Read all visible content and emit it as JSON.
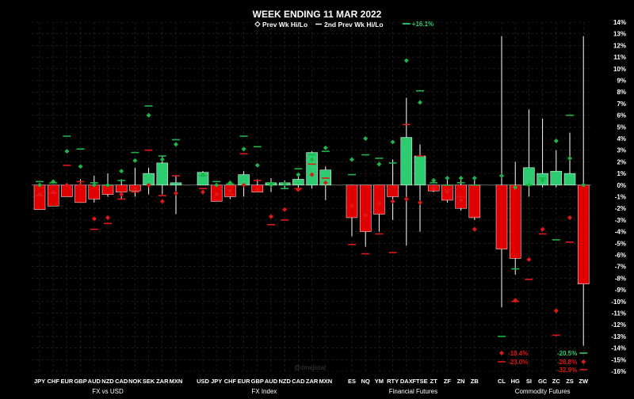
{
  "chart_data": {
    "type": "candlestick",
    "title": "WEEK ENDING 11 MAR 2022",
    "legend": {
      "placement": "top-center",
      "entries": [
        {
          "symbol": "diamond",
          "label": "Prev Wk Hi/Lo"
        },
        {
          "symbol": "dash",
          "label": "2nd Prev Wk Hi/Lo"
        }
      ]
    },
    "watermark": "@dmejistar",
    "y_axis": {
      "position": "right",
      "min": -16,
      "max": 14,
      "step": 1,
      "unit": "%"
    },
    "grid": true,
    "colors": {
      "up": "#2ecc71",
      "down": "#e00000",
      "prev": "#1fb34a",
      "prev_down": "#e01818",
      "wick": "#ffffff",
      "text": "#ffffff"
    },
    "groups": [
      {
        "label": "FX vs USD",
        "items": [
          {
            "name": "JPY",
            "open": 0.0,
            "close": -2.1,
            "high": 0.0,
            "low": -2.1,
            "prev_hi": 0.0,
            "prev_lo": -0.8,
            "prev2_hi": 0.3,
            "prev2_lo": -0.9
          },
          {
            "name": "CHF",
            "open": 0.0,
            "close": -1.8,
            "high": 0.0,
            "low": -1.8,
            "prev_hi": 0.3,
            "prev_lo": -0.6,
            "prev2_hi": 0.2,
            "prev2_lo": -0.7
          },
          {
            "name": "EUR",
            "open": 0.0,
            "close": -1.0,
            "high": 0.0,
            "low": -1.0,
            "prev_hi": 2.9,
            "prev_lo": 0.0,
            "prev2_hi": 4.2,
            "prev2_lo": 1.7
          },
          {
            "name": "GBP",
            "open": 0.0,
            "close": -1.5,
            "high": 0.5,
            "low": -1.5,
            "prev_hi": 1.6,
            "prev_lo": 0.0,
            "prev2_hi": 3.1,
            "prev2_lo": 0.3
          },
          {
            "name": "AUD",
            "open": 0.0,
            "close": -1.2,
            "high": 0.8,
            "low": -1.5,
            "prev_hi": 0.0,
            "prev_lo": -2.9,
            "prev2_hi": 0.2,
            "prev2_lo": -3.8
          },
          {
            "name": "NZD",
            "open": 0.0,
            "close": -0.8,
            "high": 1.0,
            "low": -1.0,
            "prev_hi": 0.0,
            "prev_lo": -2.8,
            "prev2_hi": 0.0,
            "prev2_lo": -3.3
          },
          {
            "name": "CAD",
            "open": 0.0,
            "close": -0.6,
            "high": 0.5,
            "low": -1.2,
            "prev_hi": 1.2,
            "prev_lo": -0.8,
            "prev2_hi": 0.4,
            "prev2_lo": -1.2
          },
          {
            "name": "NOK",
            "open": 0.0,
            "close": -0.5,
            "high": 1.5,
            "low": -1.0,
            "prev_hi": 2.1,
            "prev_lo": -0.3,
            "prev2_hi": 2.8,
            "prev2_lo": -0.6
          },
          {
            "name": "SEK",
            "open": 0.0,
            "close": 1.0,
            "high": 1.5,
            "low": -0.8,
            "prev_hi": 6.0,
            "prev_lo": 0.0,
            "prev2_hi": 6.8,
            "prev2_lo": 3.0
          },
          {
            "name": "ZAR",
            "open": 0.0,
            "close": 1.9,
            "high": 2.5,
            "low": -0.8,
            "prev_hi": 2.2,
            "prev_lo": -1.4,
            "prev2_hi": 2.5,
            "prev2_lo": -0.9
          },
          {
            "name": "MXN",
            "open": 0.0,
            "close": 0.2,
            "high": 0.8,
            "low": -2.5,
            "prev_hi": 3.5,
            "prev_lo": -0.7,
            "prev2_hi": 3.9,
            "prev2_lo": 0.8
          }
        ]
      },
      {
        "label": "FX Index",
        "items": [
          {
            "name": "USD",
            "open": 0.0,
            "close": 1.1,
            "high": 1.2,
            "low": 0.0,
            "prev_hi": 0.9,
            "prev_lo": -0.6,
            "prev2_hi": 0.8,
            "prev2_lo": -0.3
          },
          {
            "name": "JPY",
            "open": 0.0,
            "close": -1.4,
            "high": 0.0,
            "low": -1.4,
            "prev_hi": 0.0,
            "prev_lo": -0.8,
            "prev2_hi": 0.3,
            "prev2_lo": -1.3
          },
          {
            "name": "CHF",
            "open": 0.0,
            "close": -1.0,
            "high": 0.0,
            "low": -1.2,
            "prev_hi": 0.2,
            "prev_lo": -0.5,
            "prev2_hi": 0.1,
            "prev2_lo": -0.8
          },
          {
            "name": "EUR",
            "open": 0.0,
            "close": 0.9,
            "high": 1.2,
            "low": -1.0,
            "prev_hi": 3.1,
            "prev_lo": 0.0,
            "prev2_hi": 4.2,
            "prev2_lo": 2.7
          },
          {
            "name": "GBP",
            "open": 0.0,
            "close": -0.6,
            "high": 0.5,
            "low": -0.6,
            "prev_hi": 1.7,
            "prev_lo": -0.4,
            "prev2_hi": 3.3,
            "prev2_lo": 0.4
          },
          {
            "name": "AUD",
            "open": 0.0,
            "close": 0.2,
            "high": 0.6,
            "low": -0.6,
            "prev_hi": 0.0,
            "prev_lo": -2.7,
            "prev2_hi": 0.2,
            "prev2_lo": -3.4
          },
          {
            "name": "NZD",
            "open": 0.0,
            "close": 0.2,
            "high": 0.4,
            "low": -0.3,
            "prev_hi": 0.1,
            "prev_lo": -2.1,
            "prev2_hi": -0.3,
            "prev2_lo": -3.0
          },
          {
            "name": "CAD",
            "open": 0.0,
            "close": 0.5,
            "high": 1.0,
            "low": -0.3,
            "prev_hi": 0.9,
            "prev_lo": -0.4,
            "prev2_hi": 1.4,
            "prev2_lo": -0.3
          },
          {
            "name": "ZAR",
            "open": 0.0,
            "close": 2.8,
            "high": 2.9,
            "low": -0.3,
            "prev_hi": 2.2,
            "prev_lo": 0.9,
            "prev2_hi": 2.6,
            "prev2_lo": 1.8
          },
          {
            "name": "MXN",
            "open": 0.0,
            "close": 1.3,
            "high": 1.6,
            "low": -1.3,
            "prev_hi": 3.2,
            "prev_lo": 0.2,
            "prev2_hi": 2.9,
            "prev2_lo": 0.6
          }
        ]
      },
      {
        "label": "Financial Futures",
        "items": [
          {
            "name": "ES",
            "open": 0.0,
            "close": -2.8,
            "high": 0.0,
            "low": -4.4,
            "prev_hi": 2.2,
            "prev_lo": -1.8,
            "prev2_hi": 0.9,
            "prev2_lo": -5.1
          },
          {
            "name": "NQ",
            "open": 0.0,
            "close": -4.0,
            "high": 0.0,
            "low": -5.3,
            "prev_hi": 4.0,
            "prev_lo": -2.6,
            "prev2_hi": 2.6,
            "prev2_lo": -5.9
          },
          {
            "name": "YM",
            "open": 0.0,
            "close": -2.5,
            "high": 0.0,
            "low": -4.0,
            "prev_hi": 1.8,
            "prev_lo": -1.6,
            "prev2_hi": 2.3,
            "prev2_lo": -4.2
          },
          {
            "name": "RTY",
            "open": 0.0,
            "close": -1.0,
            "high": 2.2,
            "low": -3.0,
            "prev_hi": 3.7,
            "prev_lo": -1.4,
            "prev2_hi": 1.9,
            "prev2_lo": -5.8
          },
          {
            "name": "DAX",
            "open": 0.0,
            "close": 4.1,
            "high": 7.5,
            "low": -5.2,
            "prev_hi": 10.7,
            "prev_lo": -1.2,
            "prev2_hi": 16.1,
            "prev2_lo": 5.2
          },
          {
            "name": "FTSE",
            "open": 0.0,
            "close": 2.5,
            "high": 3.5,
            "low": -4.0,
            "prev_hi": 7.1,
            "prev_lo": -1.5,
            "prev2_hi": 8.1,
            "prev2_lo": 2.5
          },
          {
            "name": "ZT",
            "open": 0.0,
            "close": -0.5,
            "high": 0.0,
            "low": -0.6,
            "prev_hi": 0.4,
            "prev_lo": -0.3,
            "prev2_hi": 0.2,
            "prev2_lo": -0.2
          },
          {
            "name": "ZF",
            "open": 0.0,
            "close": -1.3,
            "high": 0.5,
            "low": -1.5,
            "prev_hi": 0.6,
            "prev_lo": -0.6,
            "prev2_hi": 0.0,
            "prev2_lo": -0.4
          },
          {
            "name": "ZN",
            "open": 0.0,
            "close": -2.0,
            "high": 0.5,
            "low": -2.2,
            "prev_hi": 0.6,
            "prev_lo": -1.3,
            "prev2_hi": 0.2,
            "prev2_lo": -1.0
          },
          {
            "name": "ZB",
            "open": 0.0,
            "close": -2.8,
            "high": 0.5,
            "low": -3.0,
            "prev_hi": 0.6,
            "prev_lo": -3.8,
            "prev2_hi": 0.0,
            "prev2_lo": -2.7
          }
        ]
      },
      {
        "label": "Commodity Futures",
        "items": [
          {
            "name": "CL",
            "open": 0.0,
            "close": -5.5,
            "high": 12.8,
            "low": -10.5,
            "prev_hi": 0.8,
            "prev_lo": -18.4,
            "prev2_hi": -13.0,
            "prev2_lo": -23.0
          },
          {
            "name": "HG",
            "open": 0.0,
            "close": -6.3,
            "high": 2.0,
            "low": -7.7,
            "prev_hi": -0.2,
            "prev_lo": -9.9,
            "prev2_hi": -7.2,
            "prev2_lo": -10.0
          },
          {
            "name": "SI",
            "open": 0.0,
            "close": 1.5,
            "high": 6.5,
            "low": -1.0,
            "prev_hi": 0.0,
            "prev_lo": -6.4,
            "prev2_hi": 0.0,
            "prev2_lo": -8.1
          },
          {
            "name": "GC",
            "open": 0.0,
            "close": 1.0,
            "high": 5.7,
            "low": -0.2,
            "prev_hi": 0.4,
            "prev_lo": -3.8,
            "prev2_hi": 0.6,
            "prev2_lo": -4.2
          },
          {
            "name": "ZC",
            "open": 0.0,
            "close": 1.2,
            "high": 3.0,
            "low": -0.2,
            "prev_hi": 3.8,
            "prev_lo": -10.8,
            "prev2_hi": -4.7,
            "prev2_lo": -12.9
          },
          {
            "name": "ZS",
            "open": 0.0,
            "close": 1.0,
            "high": 4.5,
            "low": 0.0,
            "prev_hi": 2.3,
            "prev_lo": -2.8,
            "prev2_hi": 6.0,
            "prev2_lo": -4.9
          },
          {
            "name": "ZW",
            "open": 0.0,
            "close": -8.5,
            "high": 12.8,
            "low": -13.8,
            "prev_hi": 0.0,
            "prev_lo": -26.8,
            "prev2_hi": -20.5,
            "prev2_lo": -32.9
          }
        ]
      }
    ],
    "annotations": [
      {
        "item": "DAX",
        "text": "+16.1%",
        "value": 16.1,
        "color": "#2ecc71",
        "marker": "dash"
      },
      {
        "item": "CL",
        "text": "-18.4%",
        "value": -18.4,
        "color": "#e01818",
        "marker": "diamond"
      },
      {
        "item": "CL",
        "text": "-23.0%",
        "value": -23.0,
        "color": "#e01818",
        "marker": "dash"
      },
      {
        "item": "ZW",
        "text": "-20.5%",
        "value": -20.5,
        "color": "#2ecc71",
        "marker": "dash"
      },
      {
        "item": "ZW",
        "text": "-26.8%",
        "value": -26.8,
        "color": "#e01818",
        "marker": "diamond"
      },
      {
        "item": "ZW",
        "text": "-32.9%",
        "value": -32.9,
        "color": "#e01818",
        "marker": "dash"
      }
    ]
  }
}
